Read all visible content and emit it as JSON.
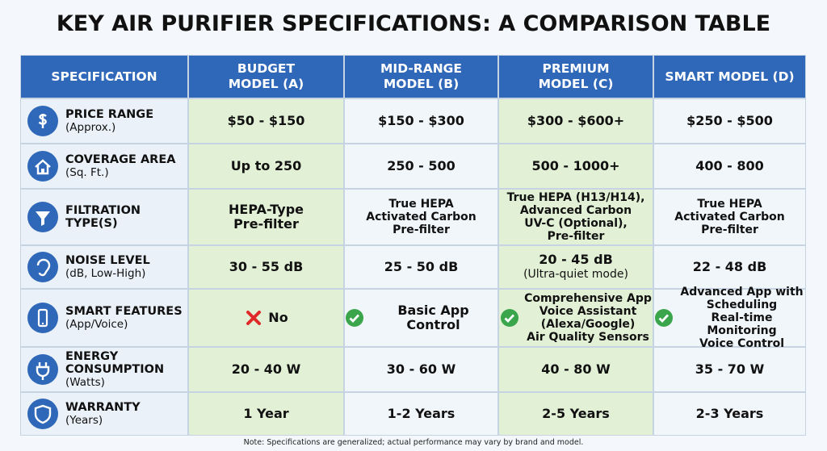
{
  "title": "KEY AIR PURIFIER SPECIFICATIONS: A COMPARISON TABLE",
  "table": {
    "header": [
      [
        "SPECIFICATION"
      ],
      [
        "BUDGET",
        "MODEL (A)"
      ],
      [
        "MID-RANGE",
        "MODEL (B)"
      ],
      [
        "PREMIUM",
        "MODEL (C)"
      ],
      [
        "SMART MODEL (D)"
      ]
    ],
    "rows": [
      {
        "label": [
          "PRICE RANGE"
        ],
        "sub": "(Approx.)",
        "cells": [
          [
            "$50 - $150"
          ],
          [
            "$150 - $300"
          ],
          [
            "$300 - $600+"
          ],
          [
            "$250 - $500"
          ]
        ]
      },
      {
        "label": [
          "COVERAGE AREA"
        ],
        "sub": "(Sq. Ft.)",
        "cells": [
          [
            "Up to 250"
          ],
          [
            "250 - 500"
          ],
          [
            "500 - 1000+"
          ],
          [
            "400 - 800"
          ]
        ]
      },
      {
        "label": [
          "FILTRATION",
          "TYPE(S)"
        ],
        "cells": [
          [
            "HEPA-Type",
            "Pre-filter"
          ],
          [
            "True HEPA",
            "Activated Carbon",
            "Pre-filter"
          ],
          [
            "True HEPA (H13/H14),",
            "Advanced Carbon",
            "UV-C (Optional),",
            "Pre-filter"
          ],
          [
            "True HEPA",
            "Activated Carbon",
            "Pre-filter"
          ]
        ]
      },
      {
        "label": [
          "NOISE LEVEL"
        ],
        "sub": "(dB, Low-High)",
        "cells": [
          [
            "30 - 55 dB"
          ],
          [
            "25 - 50 dB"
          ],
          [
            "20 - 45 dB",
            "(Ultra-quiet mode)"
          ],
          [
            "22 - 48 dB"
          ]
        ]
      },
      {
        "label": [
          "SMART FEATURES"
        ],
        "sub": "(App/Voice)",
        "cells": [
          [
            "No"
          ],
          [
            "Basic App Control"
          ],
          [
            "Comprehensive App",
            "Voice Assistant",
            "(Alexa/Google)",
            "Air Quality Sensors"
          ],
          [
            "Advanced App with",
            "Scheduling",
            "Real-time Monitoring",
            "Voice Control"
          ]
        ]
      },
      {
        "label": [
          "ENERGY",
          "CONSUMPTION"
        ],
        "sub": "(Watts)",
        "cells": [
          [
            "20 - 40 W"
          ],
          [
            "30 - 60 W"
          ],
          [
            "40 - 80 W"
          ],
          [
            "35 - 70 W"
          ]
        ]
      },
      {
        "label": [
          "WARRANTY"
        ],
        "sub": "(Years)",
        "cells": [
          [
            "1 Year"
          ],
          [
            "1-2 Years"
          ],
          [
            "2-5 Years"
          ],
          [
            "2-3 Years"
          ]
        ]
      }
    ]
  },
  "note": "Note: Specifications are generalized; actual performance may vary by brand and model."
}
